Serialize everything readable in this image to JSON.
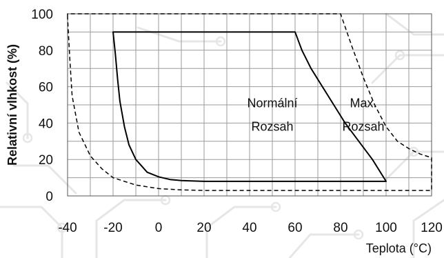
{
  "chart_data": {
    "type": "line",
    "title": "",
    "xlabel": "Teplota (°C)",
    "ylabel": "Relativní vlhkost (%)",
    "xlim": [
      -40,
      120
    ],
    "ylim": [
      0,
      100
    ],
    "grid": true,
    "x_ticks": [
      -40,
      -20,
      0,
      20,
      40,
      60,
      80,
      100,
      120
    ],
    "y_ticks": [
      0,
      20,
      40,
      60,
      80,
      100
    ],
    "regions": [
      {
        "label_lines": [
          "Normální",
          "Rozsah"
        ],
        "label_anchor": [
          50,
          44
        ],
        "line_style": "solid",
        "color": "#000000",
        "boundary": [
          [
            -20,
            90
          ],
          [
            60,
            90
          ],
          [
            63,
            80
          ],
          [
            67,
            70
          ],
          [
            72,
            60
          ],
          [
            77,
            50
          ],
          [
            82,
            40
          ],
          [
            88,
            30
          ],
          [
            94,
            20
          ],
          [
            100,
            8
          ],
          [
            20,
            8
          ],
          [
            10,
            8.4
          ],
          [
            5,
            9
          ],
          [
            0,
            10.5
          ],
          [
            -5,
            13
          ],
          [
            -10,
            20
          ],
          [
            -13,
            28
          ],
          [
            -15,
            38
          ],
          [
            -17,
            52
          ],
          [
            -18,
            64
          ],
          [
            -19,
            78
          ],
          [
            -20,
            90
          ]
        ]
      },
      {
        "label_lines": [
          "Max.",
          "Rozsah"
        ],
        "label_anchor": [
          90,
          44
        ],
        "line_style": "dashed",
        "color": "#000000",
        "boundary": [
          [
            -40,
            98
          ],
          [
            -40,
            100
          ],
          [
            80,
            100
          ],
          [
            85,
            82
          ],
          [
            90,
            65
          ],
          [
            95,
            50
          ],
          [
            100,
            38
          ],
          [
            105,
            30
          ],
          [
            110,
            26
          ],
          [
            115,
            23
          ],
          [
            120,
            21
          ],
          [
            120,
            3
          ],
          [
            20,
            3
          ],
          [
            10,
            3.3
          ],
          [
            0,
            4
          ],
          [
            -10,
            6
          ],
          [
            -20,
            10
          ],
          [
            -25,
            15
          ],
          [
            -30,
            22
          ],
          [
            -35,
            35
          ],
          [
            -38,
            55
          ],
          [
            -39,
            75
          ],
          [
            -40,
            98
          ]
        ]
      }
    ]
  }
}
